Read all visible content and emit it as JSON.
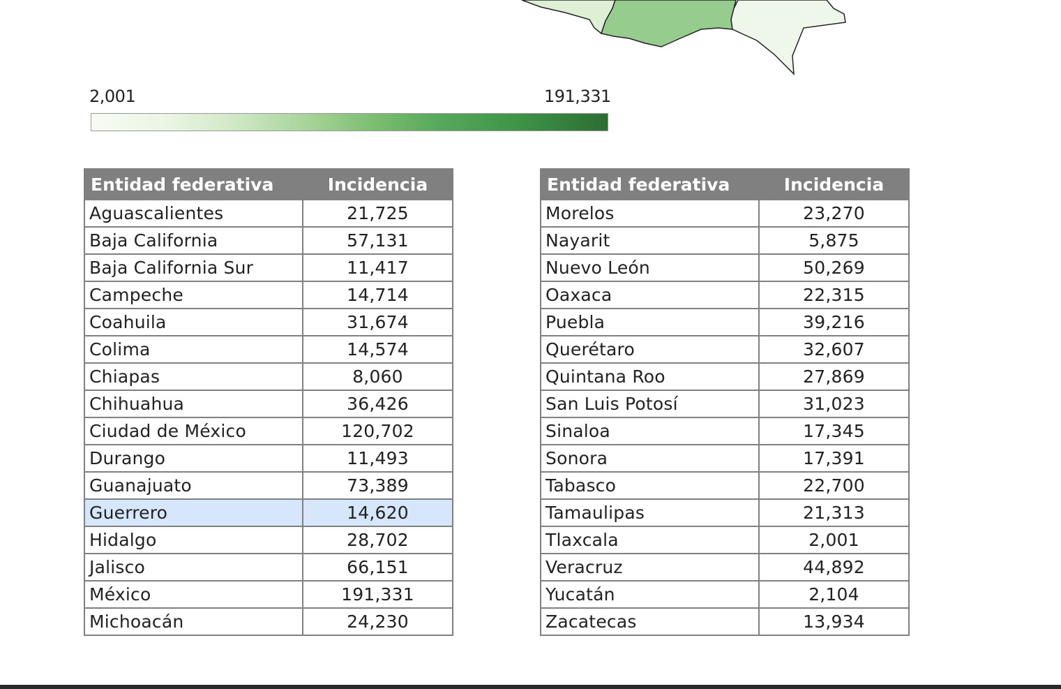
{
  "map": {
    "fills": {
      "high": "#97cc8f",
      "low": "#deefd6",
      "lowest": "#eff7ea",
      "border": "#222222"
    },
    "regions": [
      "Guerrero",
      "Oaxaca",
      "Chiapas"
    ]
  },
  "legend": {
    "min_label": "2,001",
    "max_label": "191,331",
    "color_low": "#f7fbf3",
    "color_high": "#2c6e33"
  },
  "table_left": {
    "headers": [
      "Entidad federativa",
      "Incidencia"
    ],
    "rows": [
      [
        "Aguascalientes",
        "21,725"
      ],
      [
        "Baja California",
        "57,131"
      ],
      [
        "Baja California Sur",
        "11,417"
      ],
      [
        "Campeche",
        "14,714"
      ],
      [
        "Coahuila",
        "31,674"
      ],
      [
        "Colima",
        "14,574"
      ],
      [
        "Chiapas",
        "8,060"
      ],
      [
        "Chihuahua",
        "36,426"
      ],
      [
        "Ciudad de México",
        "120,702"
      ],
      [
        "Durango",
        "11,493"
      ],
      [
        "Guanajuato",
        "73,389"
      ],
      [
        "Guerrero",
        "14,620"
      ],
      [
        "Hidalgo",
        "28,702"
      ],
      [
        "Jalisco",
        "66,151"
      ],
      [
        "México",
        "191,331"
      ],
      [
        "Michoacán",
        "24,230"
      ]
    ],
    "selected_row": 11
  },
  "table_right": {
    "headers": [
      "Entidad federativa",
      "Incidencia"
    ],
    "rows": [
      [
        "Morelos",
        "23,270"
      ],
      [
        "Nayarit",
        "5,875"
      ],
      [
        "Nuevo León",
        "50,269"
      ],
      [
        "Oaxaca",
        "22,315"
      ],
      [
        "Puebla",
        "39,216"
      ],
      [
        "Querétaro",
        "32,607"
      ],
      [
        "Quintana Roo",
        "27,869"
      ],
      [
        "San Luis Potosí",
        "31,023"
      ],
      [
        "Sinaloa",
        "17,345"
      ],
      [
        "Sonora",
        "17,391"
      ],
      [
        "Tabasco",
        "22,700"
      ],
      [
        "Tamaulipas",
        "21,313"
      ],
      [
        "Tlaxcala",
        "2,001"
      ],
      [
        "Veracruz",
        "44,892"
      ],
      [
        "Yucatán",
        "2,104"
      ],
      [
        "Zacatecas",
        "13,934"
      ]
    ]
  }
}
